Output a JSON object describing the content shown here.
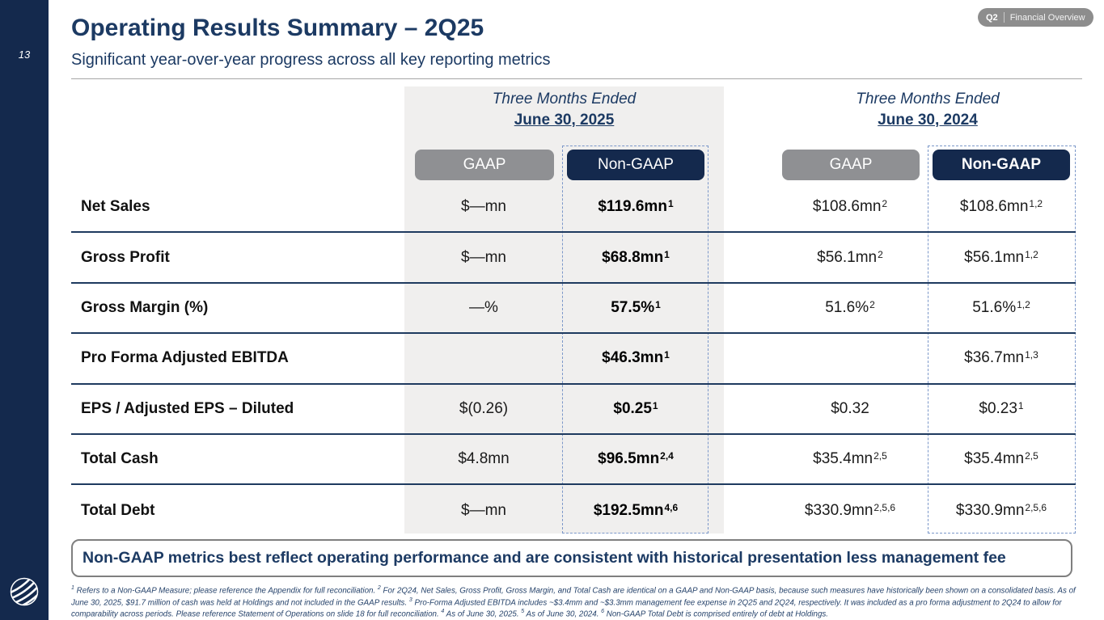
{
  "colors": {
    "navy": "#14294d",
    "navy_text": "#1c3a63",
    "pill_gray": "#8f9093",
    "band": "#f0efee",
    "line": "#1e3a5f",
    "dash": "#7b97c9",
    "badge": "#8d8d8d",
    "banner_border": "#7f7f7f",
    "footnote": "#26436b"
  },
  "sidebar": {
    "page_number": "13"
  },
  "badge": {
    "quarter": "Q2",
    "label": "Financial Overview"
  },
  "header": {
    "title": "Operating Results Summary – 2Q25",
    "subtitle": "Significant year-over-year progress across all key reporting metrics"
  },
  "table": {
    "groups": [
      {
        "period_line1": "Three Months Ended",
        "period_line2": "June 30, 2025",
        "columns": [
          {
            "label": "GAAP"
          },
          {
            "label": "Non-GAAP"
          }
        ]
      },
      {
        "period_line1": "Three Months Ended",
        "period_line2": "June 30, 2024",
        "columns": [
          {
            "label": "GAAP"
          },
          {
            "label": "Non-GAAP"
          }
        ]
      }
    ],
    "rows": [
      {
        "label": "Net Sales",
        "cells": [
          {
            "text": "$—mn"
          },
          {
            "text": "$119.6mn",
            "sup": "1"
          },
          {
            "text": "$108.6mn",
            "sup": "2"
          },
          {
            "text": "$108.6mn",
            "sup": "1,2"
          }
        ]
      },
      {
        "label": "Gross Profit",
        "cells": [
          {
            "text": "$—mn"
          },
          {
            "text": "$68.8mn",
            "sup": "1"
          },
          {
            "text": "$56.1mn",
            "sup": "2"
          },
          {
            "text": "$56.1mn",
            "sup": "1,2"
          }
        ]
      },
      {
        "label": "Gross Margin (%)",
        "cells": [
          {
            "text": "—%"
          },
          {
            "text": "57.5%",
            "sup": "1"
          },
          {
            "text": "51.6%",
            "sup": "2"
          },
          {
            "text": "51.6%",
            "sup": "1,2"
          }
        ]
      },
      {
        "label": "Pro Forma Adjusted EBITDA",
        "cells": [
          {
            "text": ""
          },
          {
            "text": "$46.3mn",
            "sup": "1"
          },
          {
            "text": ""
          },
          {
            "text": "$36.7mn",
            "sup": "1,3"
          }
        ]
      },
      {
        "label": "EPS / Adjusted EPS – Diluted",
        "cells": [
          {
            "text": "$(0.26)"
          },
          {
            "text": "$0.25",
            "sup": "1"
          },
          {
            "text": "$0.32"
          },
          {
            "text": "$0.23",
            "sup": "1"
          }
        ]
      },
      {
        "label": "Total Cash",
        "cells": [
          {
            "text": "$4.8mn"
          },
          {
            "text": "$96.5mn",
            "sup": "2,4"
          },
          {
            "text": "$35.4mn",
            "sup": "2,5"
          },
          {
            "text": "$35.4mn",
            "sup": "2,5"
          }
        ]
      },
      {
        "label": "Total Debt",
        "cells": [
          {
            "text": "$—mn"
          },
          {
            "text": "$192.5mn",
            "sup": "4,6"
          },
          {
            "text": "$330.9mn",
            "sup": "2,5,6"
          },
          {
            "text": "$330.9mn",
            "sup": "2,5,6"
          }
        ]
      }
    ]
  },
  "banner": {
    "text": "Non-GAAP metrics best reflect operating performance and are consistent with historical presentation less management fee"
  },
  "footnotes": [
    {
      "sup": "1",
      "text": "Refers to a Non-GAAP Measure; please reference the Appendix for full reconciliation."
    },
    {
      "sup": "2",
      "text": "For 2Q24, Net Sales, Gross Profit, Gross Margin, and Total Cash are identical on a GAAP and Non-GAAP basis, because such measures have historically been shown on a consolidated basis. As of June 30, 2025, $91.7 million of cash was held at Holdings and not included in the GAAP results."
    },
    {
      "sup": "3",
      "text": "Pro-Forma Adjusted EBITDA includes ~$3.4mm and ~$3.3mm management fee expense in 2Q25 and 2Q24, respectively. It was included as a pro forma adjustment to 2Q24 to allow for comparability across periods. Please reference Statement of Operations on slide 18 for full reconciliation."
    },
    {
      "sup": "4",
      "text": "As of June 30, 2025."
    },
    {
      "sup": "5",
      "text": "As of June 30, 2024."
    },
    {
      "sup": "6",
      "text": "Non-GAAP Total Debt is comprised entirely of debt at Holdings."
    }
  ]
}
